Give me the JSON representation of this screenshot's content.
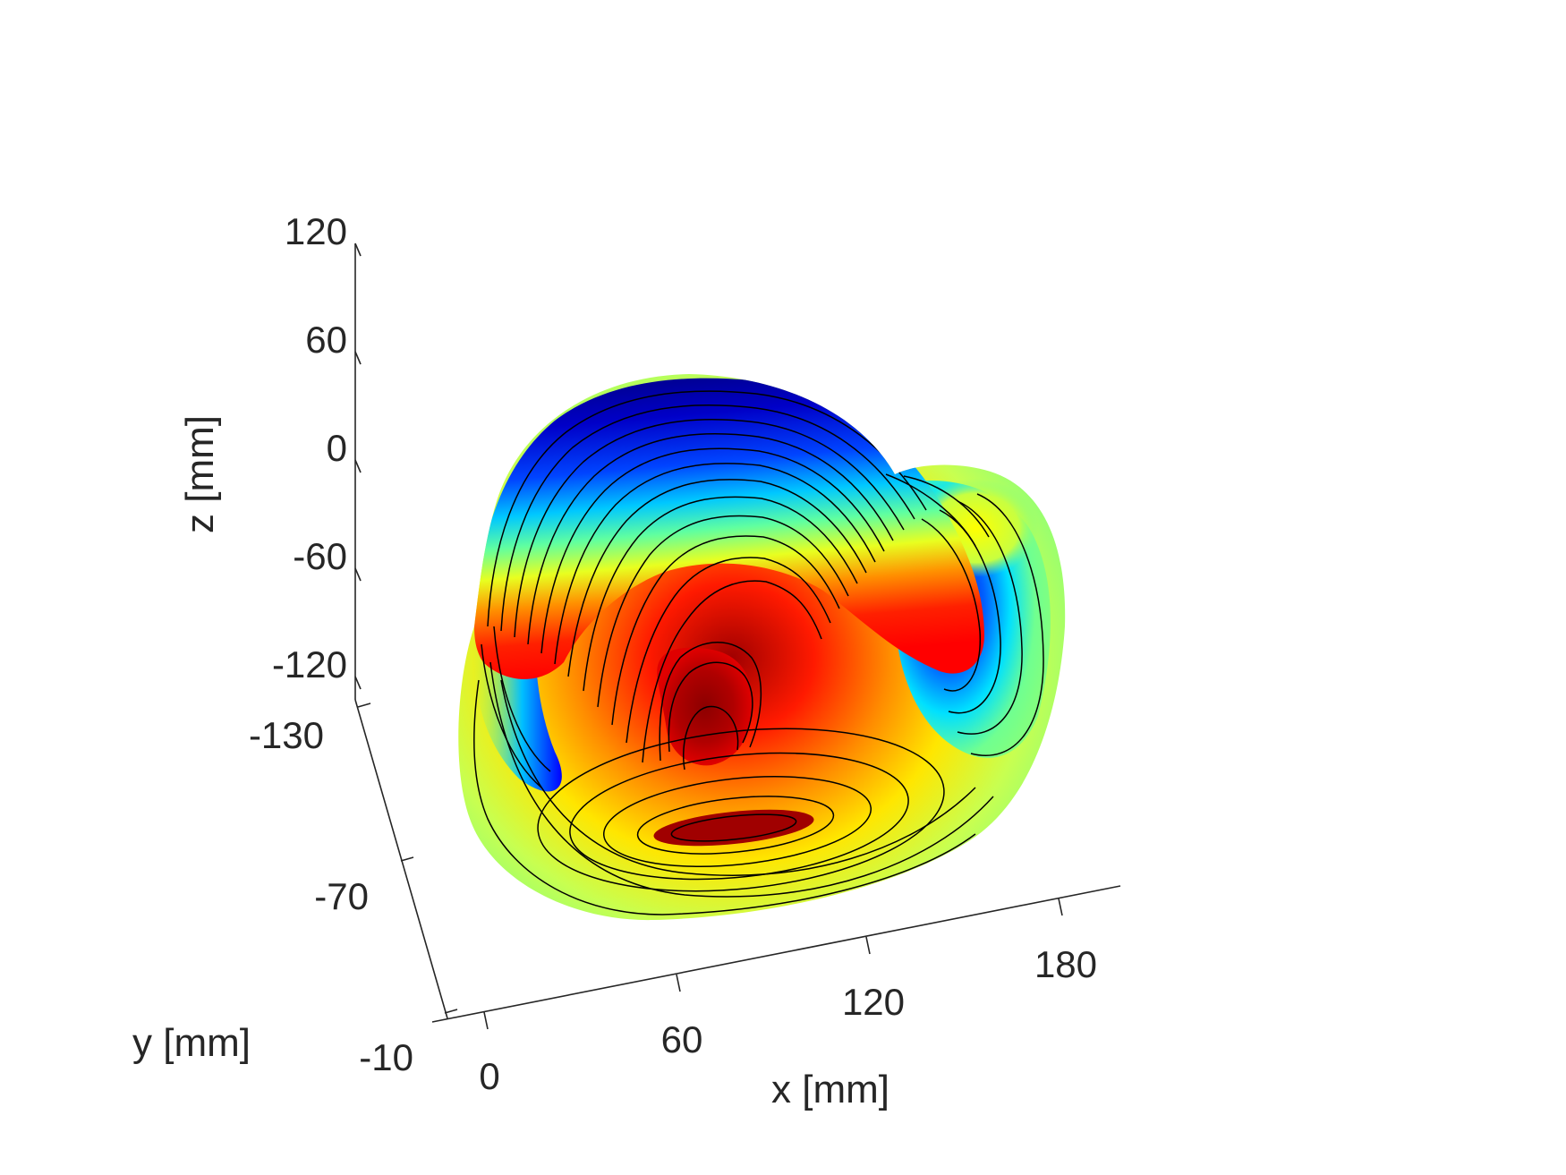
{
  "chart_data": {
    "type": "surface3d-contour",
    "title": "",
    "xlabel": "x [mm]",
    "ylabel": "y [mm]",
    "zlabel": "z [mm]",
    "x_ticks": [
      "0",
      "60",
      "120",
      "180"
    ],
    "y_ticks": [
      "-130",
      "-70",
      "-10"
    ],
    "z_ticks": [
      "120",
      "60",
      "0",
      "-60",
      "-120"
    ],
    "colormap": "jet",
    "colormap_stops": [
      "#00008f",
      "#0000ff",
      "#00ffff",
      "#80ff80",
      "#ffff00",
      "#ff0000",
      "#800000"
    ],
    "contour_color": "#000000",
    "grid": false,
    "legend": "none"
  }
}
